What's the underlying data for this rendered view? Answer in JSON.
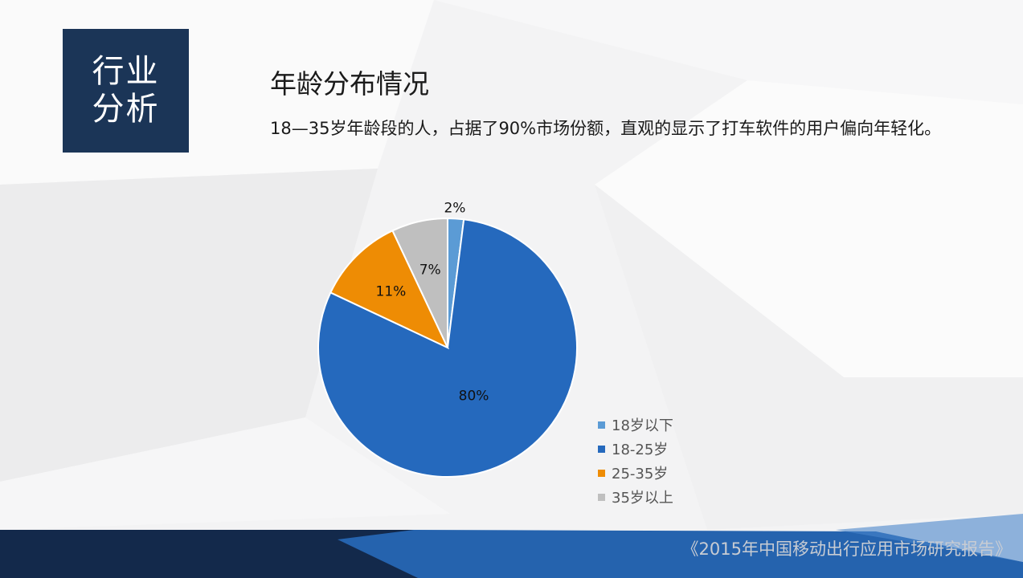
{
  "badge": {
    "label": "行业分析"
  },
  "header": {
    "title": "年龄分布情况",
    "description": "18—35岁年龄段的人，占据了90%市场份额，直观的显示了打车软件的用户偏向年轻化。"
  },
  "chart_data": {
    "type": "pie",
    "title": "",
    "categories": [
      "18岁以下",
      "18-25岁",
      "25-35岁",
      "35岁以上"
    ],
    "values": [
      2,
      80,
      11,
      7
    ],
    "data_labels": [
      "2%",
      "80%",
      "11%",
      "7%"
    ],
    "colors": [
      "#5b9bd5",
      "#2569bd",
      "#ee8c04",
      "#bfbfbf"
    ],
    "legend_position": "bottom-right"
  },
  "footer": {
    "source": "《2015年中国移动出行应用市场研究报告》"
  },
  "colors": {
    "badge": "#1b3557",
    "footer_dark": "#13294b",
    "footer_blue": "#2563ae"
  }
}
